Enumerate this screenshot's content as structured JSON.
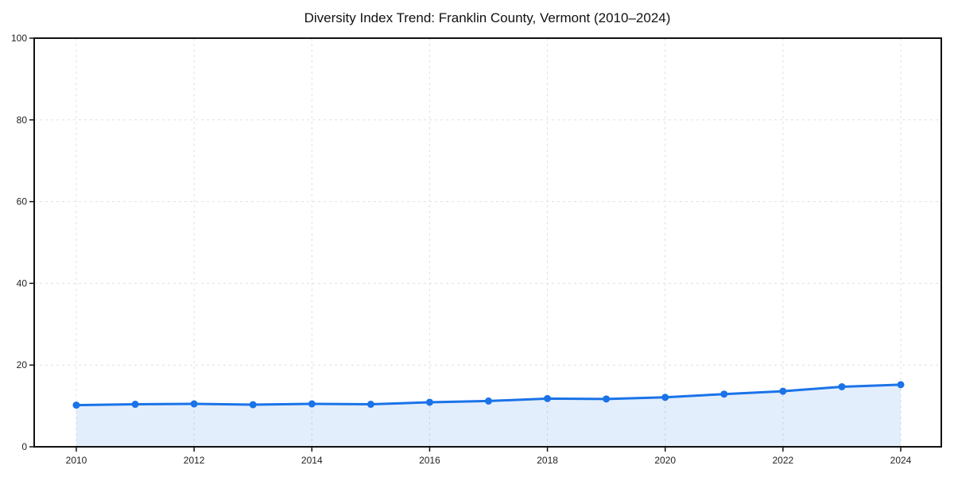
{
  "header": {
    "title": "Diversity Index Trend: Franklin County, Vermont (2010–2024)"
  },
  "chart_data": {
    "type": "line",
    "title": "Diversity Index Trend: Franklin County, Vermont (2010–2024)",
    "x": [
      2010,
      2011,
      2012,
      2013,
      2014,
      2015,
      2016,
      2017,
      2018,
      2019,
      2020,
      2021,
      2022,
      2023,
      2024
    ],
    "series": [
      {
        "name": "Diversity Index",
        "values": [
          10.2,
          10.4,
          10.5,
          10.3,
          10.5,
          10.4,
          10.9,
          11.2,
          11.8,
          11.7,
          12.1,
          12.9,
          13.6,
          14.7,
          15.2
        ]
      }
    ],
    "xlabel": "",
    "ylabel": "",
    "xlim": [
      2010,
      2024
    ],
    "ylim": [
      0,
      100
    ],
    "yticks": [
      0,
      20,
      40,
      60,
      80,
      100
    ],
    "xticks": [
      2010,
      2012,
      2014,
      2016,
      2018,
      2020,
      2022,
      2024
    ],
    "grid": true,
    "grid_style": "dashed",
    "legend": false,
    "area_fill": true,
    "marker": "circle",
    "colors": {
      "line": "#1a73e8",
      "marker": "#1a73e8",
      "area": "rgba(26,115,232,0.12)",
      "grid": "#e0e0e0",
      "axis": "#111111",
      "tick_text": "#1f1f1f",
      "title_text": "#111111",
      "background": "#ffffff"
    }
  }
}
